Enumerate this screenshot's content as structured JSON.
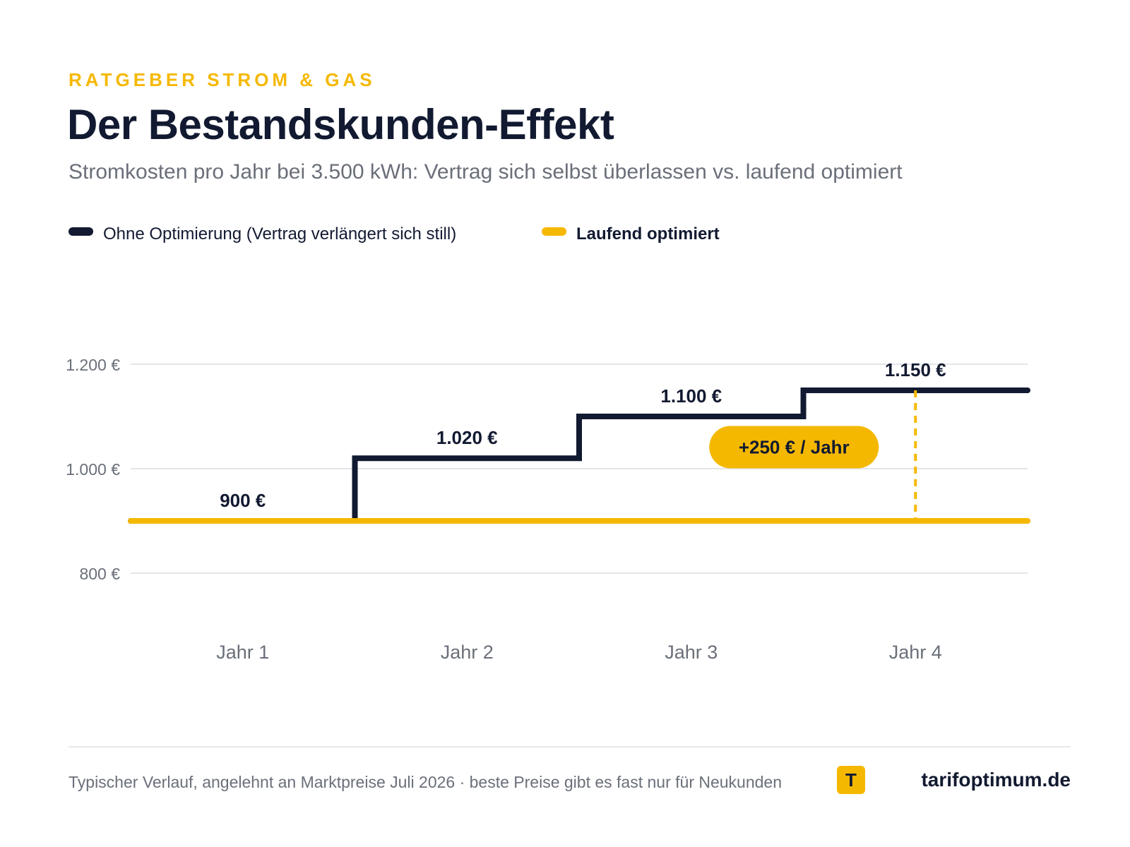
{
  "header": {
    "kicker": "RATGEBER STROM & GAS",
    "title": "Der Bestandskunden-Effekt",
    "subtitle": "Stromkosten pro Jahr bei 3.500 kWh: Vertrag sich selbst überlassen vs. laufend optimiert"
  },
  "legend": {
    "items": [
      {
        "label": "Ohne Optimierung (Vertrag verlängert sich still)",
        "color": "#121A31"
      },
      {
        "label": "Laufend optimiert",
        "color": "#F5B800"
      }
    ]
  },
  "chart_data": {
    "type": "line",
    "title": "",
    "xlabel": "",
    "ylabel": "",
    "categories": [
      "Jahr 1",
      "Jahr 2",
      "Jahr 3",
      "Jahr 4"
    ],
    "series": [
      {
        "name": "Ohne Optimierung (Vertrag verlängert sich still)",
        "values": [
          900,
          1020,
          1100,
          1150
        ],
        "color": "#121A31",
        "style": "step"
      },
      {
        "name": "Laufend optimiert",
        "values": [
          900,
          900,
          900,
          900
        ],
        "color": "#F5B800",
        "style": "step"
      }
    ],
    "data_labels": [
      "900 €",
      "1.020 €",
      "1.100 €",
      "1.150 €"
    ],
    "ylim": [
      700,
      1250
    ],
    "yticks": [
      {
        "value": 800,
        "label": "800 €"
      },
      {
        "value": 1000,
        "label": "1.000 €"
      },
      {
        "value": 1200,
        "label": "1.200 €"
      }
    ],
    "grid": true,
    "legend_position": "top-left",
    "annotation": {
      "text": "+250 € / Jahr",
      "category": "Jahr 4",
      "from": 900,
      "to": 1150,
      "color": "#F5B800"
    }
  },
  "footer": {
    "note": "Typischer Verlauf, angelehnt an Marktpreise Juli 2026 · beste Preise gibt es fast nur für Neukunden",
    "badge": "T",
    "brand": "tarifoptimum.de"
  }
}
